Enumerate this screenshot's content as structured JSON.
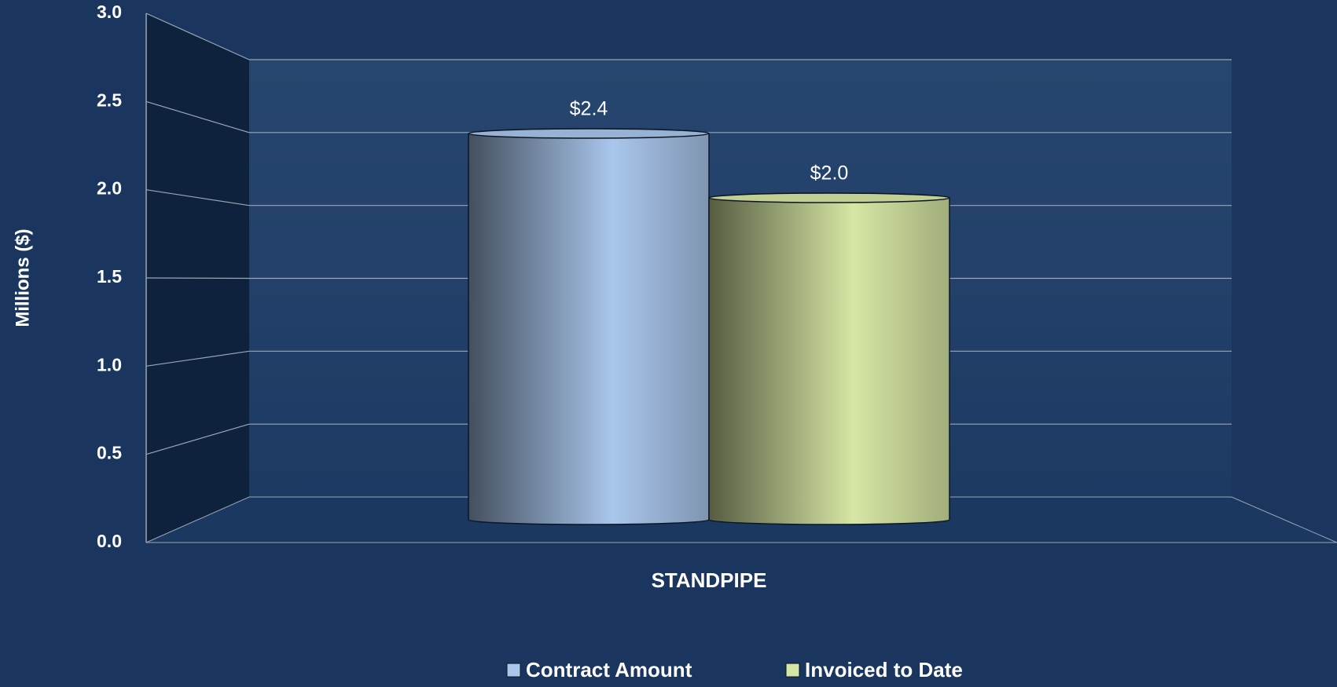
{
  "chart_data": {
    "type": "bar",
    "categories": [
      "STANDPIPE"
    ],
    "series": [
      {
        "name": "Contract Amount",
        "color": "#a9c6ec",
        "values": [
          2.4
        ],
        "value_labels": [
          "$2.4"
        ]
      },
      {
        "name": "Invoiced to Date",
        "color": "#d6e6a4",
        "values": [
          2.0
        ],
        "value_labels": [
          "$2.0"
        ]
      }
    ],
    "ylabel": "Millions ($)",
    "ylim": [
      0,
      3
    ],
    "yticks": [
      {
        "value": 0,
        "label": "0.0"
      },
      0.5,
      {
        "value": 1,
        "label": "1.0"
      },
      1.5,
      {
        "value": 2,
        "label": "2.0"
      },
      2.5,
      {
        "value": 3,
        "label": "3.0"
      }
    ],
    "grid": true,
    "legend": "bottom"
  }
}
